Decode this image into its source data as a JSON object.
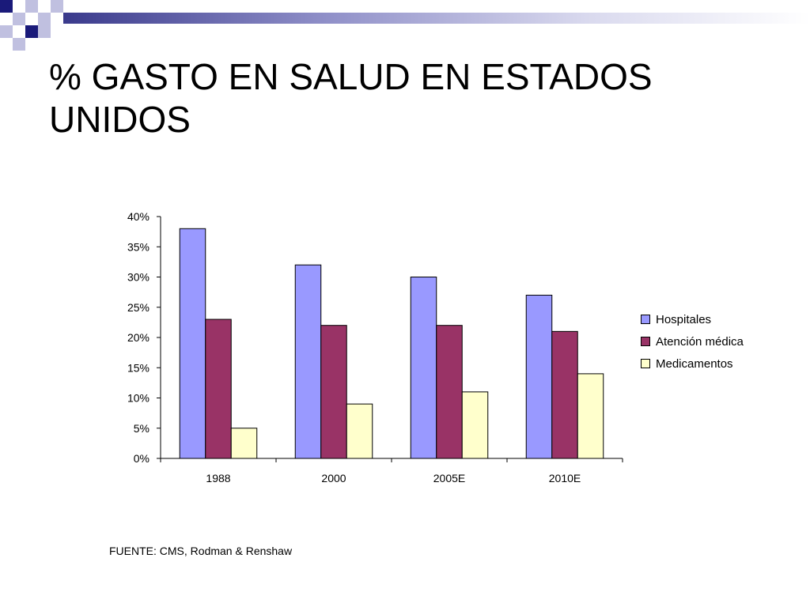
{
  "slide": {
    "title": "% GASTO EN SALUD EN ESTADOS UNIDOS",
    "source": "FUENTE: CMS, Rodman & Renshaw"
  },
  "colors": {
    "hospitales": "#9999FF",
    "atencion": "#993366",
    "medicamentos": "#FFFFCC",
    "deco_dark": "#1a1a7a",
    "deco_light": "#c0c0e0"
  },
  "chart_data": {
    "type": "bar",
    "categories": [
      "1988",
      "2000",
      "2005E",
      "2010E"
    ],
    "series": [
      {
        "name": "Hospitales",
        "values": [
          38,
          32,
          30,
          27
        ]
      },
      {
        "name": "Atención médica",
        "values": [
          23,
          22,
          22,
          21
        ]
      },
      {
        "name": "Medicamentos",
        "values": [
          5,
          9,
          11,
          14
        ]
      }
    ],
    "ylim": [
      0,
      40
    ],
    "yticks": [
      0,
      5,
      10,
      15,
      20,
      25,
      30,
      35,
      40
    ],
    "ytick_labels": [
      "0%",
      "5%",
      "10%",
      "15%",
      "20%",
      "25%",
      "30%",
      "35%",
      "40%"
    ],
    "legend_position": "right",
    "grid": false
  }
}
